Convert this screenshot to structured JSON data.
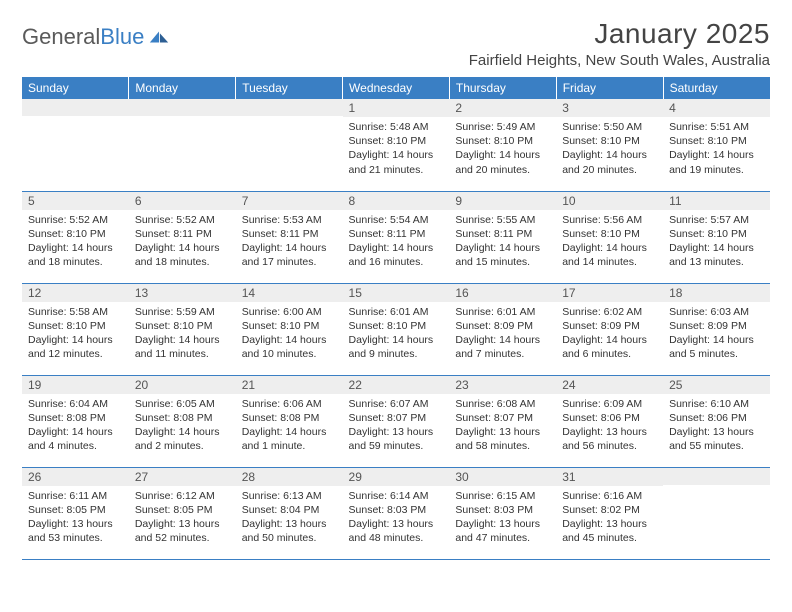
{
  "logo": {
    "text1": "General",
    "text2": "Blue"
  },
  "title": "January 2025",
  "location": "Fairfield Heights, New South Wales, Australia",
  "theme": {
    "header_bg": "#3a7fc4",
    "header_text": "#ffffff",
    "daynum_bg": "#eeeeee",
    "border_color": "#3a7fc4",
    "body_text": "#333333",
    "logo_gray": "#5a5a5a",
    "logo_blue": "#3a7fc4"
  },
  "weekdays": [
    "Sunday",
    "Monday",
    "Tuesday",
    "Wednesday",
    "Thursday",
    "Friday",
    "Saturday"
  ],
  "weeks": [
    [
      null,
      null,
      null,
      {
        "n": "1",
        "sunrise": "5:48 AM",
        "sunset": "8:10 PM",
        "daylight": "14 hours and 21 minutes."
      },
      {
        "n": "2",
        "sunrise": "5:49 AM",
        "sunset": "8:10 PM",
        "daylight": "14 hours and 20 minutes."
      },
      {
        "n": "3",
        "sunrise": "5:50 AM",
        "sunset": "8:10 PM",
        "daylight": "14 hours and 20 minutes."
      },
      {
        "n": "4",
        "sunrise": "5:51 AM",
        "sunset": "8:10 PM",
        "daylight": "14 hours and 19 minutes."
      }
    ],
    [
      {
        "n": "5",
        "sunrise": "5:52 AM",
        "sunset": "8:10 PM",
        "daylight": "14 hours and 18 minutes."
      },
      {
        "n": "6",
        "sunrise": "5:52 AM",
        "sunset": "8:11 PM",
        "daylight": "14 hours and 18 minutes."
      },
      {
        "n": "7",
        "sunrise": "5:53 AM",
        "sunset": "8:11 PM",
        "daylight": "14 hours and 17 minutes."
      },
      {
        "n": "8",
        "sunrise": "5:54 AM",
        "sunset": "8:11 PM",
        "daylight": "14 hours and 16 minutes."
      },
      {
        "n": "9",
        "sunrise": "5:55 AM",
        "sunset": "8:11 PM",
        "daylight": "14 hours and 15 minutes."
      },
      {
        "n": "10",
        "sunrise": "5:56 AM",
        "sunset": "8:10 PM",
        "daylight": "14 hours and 14 minutes."
      },
      {
        "n": "11",
        "sunrise": "5:57 AM",
        "sunset": "8:10 PM",
        "daylight": "14 hours and 13 minutes."
      }
    ],
    [
      {
        "n": "12",
        "sunrise": "5:58 AM",
        "sunset": "8:10 PM",
        "daylight": "14 hours and 12 minutes."
      },
      {
        "n": "13",
        "sunrise": "5:59 AM",
        "sunset": "8:10 PM",
        "daylight": "14 hours and 11 minutes."
      },
      {
        "n": "14",
        "sunrise": "6:00 AM",
        "sunset": "8:10 PM",
        "daylight": "14 hours and 10 minutes."
      },
      {
        "n": "15",
        "sunrise": "6:01 AM",
        "sunset": "8:10 PM",
        "daylight": "14 hours and 9 minutes."
      },
      {
        "n": "16",
        "sunrise": "6:01 AM",
        "sunset": "8:09 PM",
        "daylight": "14 hours and 7 minutes."
      },
      {
        "n": "17",
        "sunrise": "6:02 AM",
        "sunset": "8:09 PM",
        "daylight": "14 hours and 6 minutes."
      },
      {
        "n": "18",
        "sunrise": "6:03 AM",
        "sunset": "8:09 PM",
        "daylight": "14 hours and 5 minutes."
      }
    ],
    [
      {
        "n": "19",
        "sunrise": "6:04 AM",
        "sunset": "8:08 PM",
        "daylight": "14 hours and 4 minutes."
      },
      {
        "n": "20",
        "sunrise": "6:05 AM",
        "sunset": "8:08 PM",
        "daylight": "14 hours and 2 minutes."
      },
      {
        "n": "21",
        "sunrise": "6:06 AM",
        "sunset": "8:08 PM",
        "daylight": "14 hours and 1 minute."
      },
      {
        "n": "22",
        "sunrise": "6:07 AM",
        "sunset": "8:07 PM",
        "daylight": "13 hours and 59 minutes."
      },
      {
        "n": "23",
        "sunrise": "6:08 AM",
        "sunset": "8:07 PM",
        "daylight": "13 hours and 58 minutes."
      },
      {
        "n": "24",
        "sunrise": "6:09 AM",
        "sunset": "8:06 PM",
        "daylight": "13 hours and 56 minutes."
      },
      {
        "n": "25",
        "sunrise": "6:10 AM",
        "sunset": "8:06 PM",
        "daylight": "13 hours and 55 minutes."
      }
    ],
    [
      {
        "n": "26",
        "sunrise": "6:11 AM",
        "sunset": "8:05 PM",
        "daylight": "13 hours and 53 minutes."
      },
      {
        "n": "27",
        "sunrise": "6:12 AM",
        "sunset": "8:05 PM",
        "daylight": "13 hours and 52 minutes."
      },
      {
        "n": "28",
        "sunrise": "6:13 AM",
        "sunset": "8:04 PM",
        "daylight": "13 hours and 50 minutes."
      },
      {
        "n": "29",
        "sunrise": "6:14 AM",
        "sunset": "8:03 PM",
        "daylight": "13 hours and 48 minutes."
      },
      {
        "n": "30",
        "sunrise": "6:15 AM",
        "sunset": "8:03 PM",
        "daylight": "13 hours and 47 minutes."
      },
      {
        "n": "31",
        "sunrise": "6:16 AM",
        "sunset": "8:02 PM",
        "daylight": "13 hours and 45 minutes."
      },
      null
    ]
  ],
  "labels": {
    "sunrise": "Sunrise:",
    "sunset": "Sunset:",
    "daylight": "Daylight:"
  }
}
